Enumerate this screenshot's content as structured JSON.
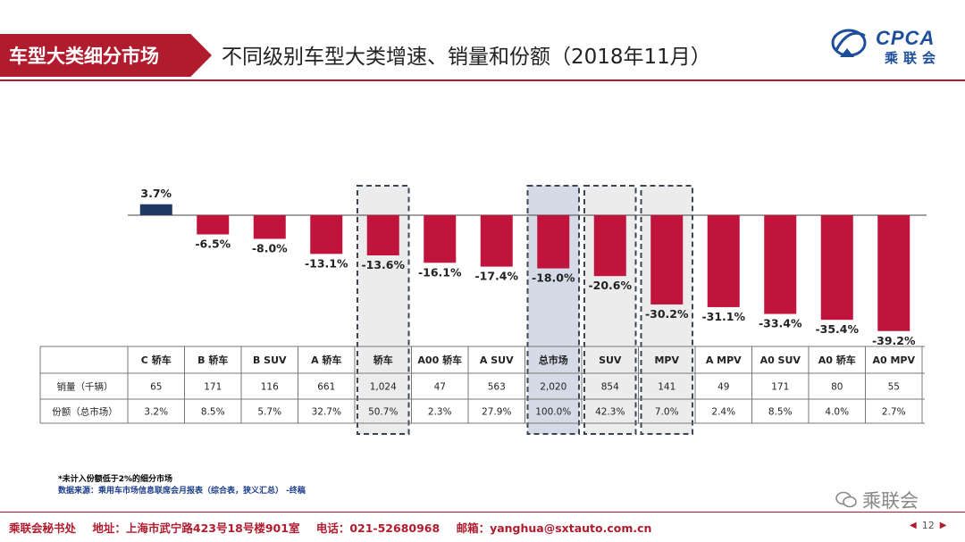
{
  "header": {
    "section": "车型大类细分市场",
    "title": "不同级别车型大类增速、销量和份额（2018年11月）"
  },
  "logo": {
    "brand": "CPCA",
    "cn": "乘联会",
    "sub": "CPCA"
  },
  "chart_data": {
    "type": "bar",
    "title": "不同级别车型大类增速、销量和份额（2018年11月）",
    "categories": [
      "C 轿车",
      "B 轿车",
      "B SUV",
      "A 轿车",
      "轿车",
      "A00 轿车",
      "A SUV",
      "总市场",
      "SUV",
      "MPV",
      "A MPV",
      "A0 SUV",
      "A0 轿车",
      "A0 MPV"
    ],
    "values": [
      3.7,
      -6.5,
      -8.0,
      -13.1,
      -13.6,
      -16.1,
      -17.4,
      -18.0,
      -20.6,
      -30.2,
      -31.1,
      -33.4,
      -35.4,
      -39.2
    ],
    "value_labels": [
      "3.7%",
      "-6.5%",
      "-8.0%",
      "-13.1%",
      "-13.6%",
      "-16.1%",
      "-17.4%",
      "-18.0%",
      "-20.6%",
      "-30.2%",
      "-31.1%",
      "-33.4%",
      "-35.4%",
      "-39.2%"
    ],
    "ylim": [
      -41,
      4
    ],
    "positive_color": "#1f3864",
    "negative_color": "#c0143c",
    "highlighted": [
      "轿车",
      "总市场",
      "SUV",
      "MPV"
    ],
    "table": {
      "rows": [
        {
          "label": "销量（千辆）",
          "values": [
            "65",
            "171",
            "116",
            "661",
            "1,024",
            "47",
            "563",
            "2,020",
            "854",
            "141",
            "49",
            "171",
            "80",
            "55"
          ]
        },
        {
          "label": "份额（总市场）",
          "values": [
            "3.2%",
            "8.5%",
            "5.7%",
            "32.7%",
            "50.7%",
            "2.3%",
            "27.9%",
            "100.0%",
            "42.3%",
            "7.0%",
            "2.4%",
            "8.5%",
            "4.0%",
            "2.7%"
          ]
        }
      ]
    }
  },
  "notes": {
    "note1": "*未计入份额低于2%的细分市场",
    "note2": "数据来源：乘用车市场信息联席会月报表（综合表，狭义汇总）  -终稿"
  },
  "watermark": "乘联会",
  "footer": {
    "org": "乘联会秘书处",
    "address": "地址：上海市武宁路423号18号楼901室",
    "phone": "电话：021-52680968",
    "email": "邮箱：yanghua@sxtauto.com.cn"
  },
  "pager": {
    "page": "12"
  }
}
